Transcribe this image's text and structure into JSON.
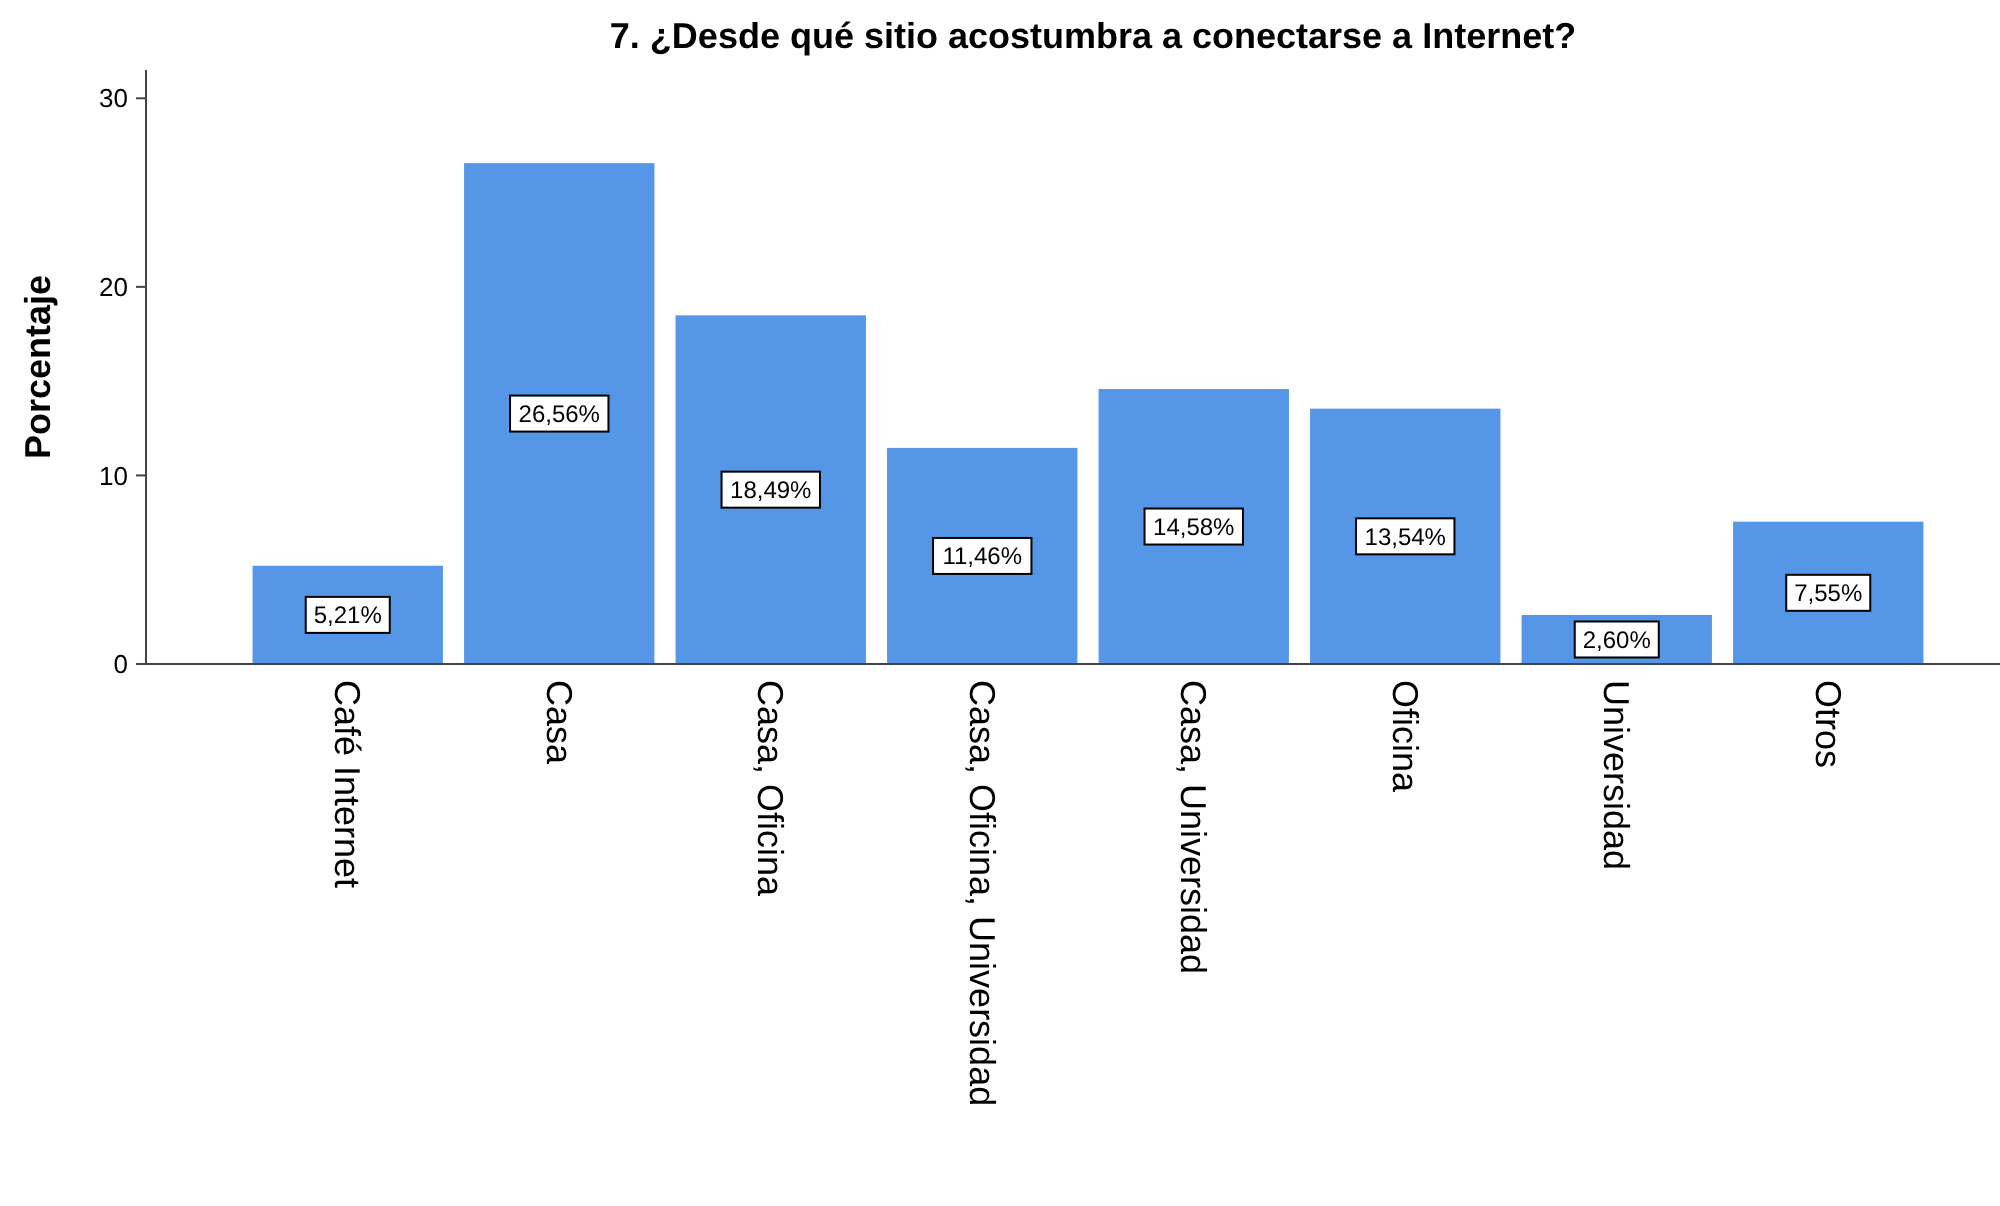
{
  "chart_data": {
    "type": "bar",
    "title": "7. ¿Desde qué sitio acostumbra a conectarse a Internet?",
    "ylabel": "Porcentaje",
    "categories": [
      "Café Internet",
      "Casa",
      "Casa, Oficina",
      "Casa, Oficina, Universidad",
      "Casa, Universidad",
      "Oficina",
      "Universidad",
      "Otros"
    ],
    "values": [
      5.21,
      26.56,
      18.49,
      11.46,
      14.58,
      13.54,
      2.6,
      7.55
    ],
    "value_labels": [
      "5,21%",
      "26,56%",
      "18,49%",
      "11,46%",
      "14,58%",
      "13,54%",
      "2,60%",
      "7,55%"
    ],
    "color": "#5596e6",
    "ylim": [
      0,
      31.5
    ],
    "yticks": [
      0,
      10,
      20,
      30
    ],
    "grid": false
  }
}
